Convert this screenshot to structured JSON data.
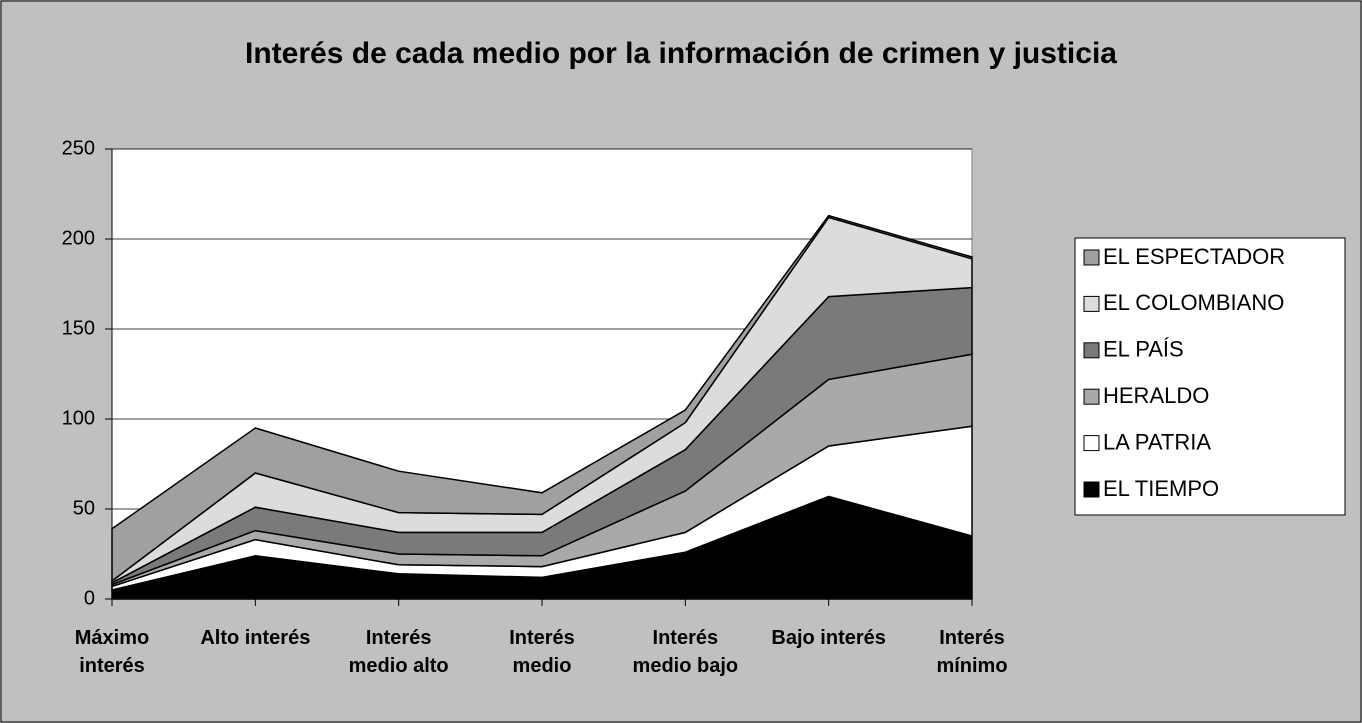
{
  "chart_data": {
    "type": "stacked_area",
    "title": "Interés de cada medio por la información de crimen y justicia",
    "categories": [
      "Máximo interés",
      "Alto interés",
      "Interés medio alto",
      "Interés medio",
      "Interés medio bajo",
      "Bajo interés",
      "Interés mínimo"
    ],
    "series": [
      {
        "name": "EL TIEMPO",
        "color": "#000000",
        "values": [
          5,
          24,
          14,
          12,
          26,
          57,
          35
        ]
      },
      {
        "name": "LA PATRIA",
        "color": "#ffffff",
        "values": [
          2,
          9,
          5,
          6,
          11,
          28,
          61
        ]
      },
      {
        "name": "HERALDO",
        "color": "#a9a9a9",
        "values": [
          1,
          5,
          6,
          6,
          23,
          37,
          40
        ]
      },
      {
        "name": "EL PAÍS",
        "color": "#7a7a7a",
        "values": [
          1,
          13,
          12,
          13,
          23,
          46,
          37
        ]
      },
      {
        "name": "EL COLOMBIANO",
        "color": "#dcdcdc",
        "values": [
          1,
          19,
          11,
          10,
          15,
          44,
          16
        ]
      },
      {
        "name": "EL ESPECTADOR",
        "color": "#a0a0a0",
        "values": [
          29,
          25,
          23,
          12,
          7,
          1,
          1
        ]
      }
    ],
    "ylim": [
      0,
      250
    ],
    "yticks": [
      0,
      50,
      100,
      150,
      200,
      250
    ],
    "grid": true,
    "legend": "right"
  }
}
